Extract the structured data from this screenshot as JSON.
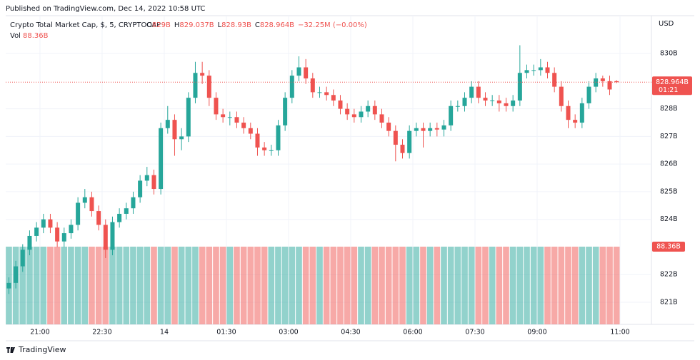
{
  "header": "Published on TradingView.com, Dec 14, 2022 10:58 UTC",
  "footer": "TradingView",
  "chart_data": {
    "type": "candlestick",
    "title": "Crypto Total Market Cap, $, 5, CRYPTOCAP",
    "ohlc_legend": [
      {
        "label": "O",
        "value": "829B"
      },
      {
        "label": "H",
        "value": "829.037B"
      },
      {
        "label": "L",
        "value": "828.93B"
      },
      {
        "label": "C",
        "value": "828.964B"
      }
    ],
    "change": "−32.25M (−0.00%)",
    "volume_legend": {
      "label": "Vol",
      "value": "88.36B"
    },
    "currency": "USD",
    "price_label": "828.964B",
    "countdown": "01:21",
    "up_color": "#26a69a",
    "down_color": "#ef5350",
    "grid": true,
    "xlim": [
      -49.6,
      885.5
    ],
    "xticks": [
      {
        "value": 0,
        "label": "21:00"
      },
      {
        "value": 90,
        "label": "22:30"
      },
      {
        "value": 180,
        "label": "14"
      },
      {
        "value": 270,
        "label": "01:30"
      },
      {
        "value": 360,
        "label": "03:00"
      },
      {
        "value": 450,
        "label": "04:30"
      },
      {
        "value": 540,
        "label": "06:00"
      },
      {
        "value": 630,
        "label": "07:30"
      },
      {
        "value": 720,
        "label": "09:00"
      },
      {
        "value": 840,
        "label": "11:00"
      }
    ],
    "ylim": [
      820.2,
      831.37
    ],
    "yticks": [
      {
        "value": 821,
        "label": "821B"
      },
      {
        "value": 822,
        "label": "822B"
      },
      {
        "value": 824,
        "label": "824B"
      },
      {
        "value": 825,
        "label": "825B"
      },
      {
        "value": 826,
        "label": "826B"
      },
      {
        "value": 827,
        "label": "827B"
      },
      {
        "value": 828,
        "label": "828B"
      },
      {
        "value": 830,
        "label": "830B"
      }
    ],
    "vol_ylim": [
      0,
      88.36
    ],
    "x": [
      -45,
      -35,
      -25,
      -15,
      -5,
      5,
      15,
      25,
      35,
      45,
      55,
      65,
      75,
      85,
      95,
      105,
      115,
      125,
      135,
      145,
      155,
      165,
      175,
      185,
      195,
      205,
      215,
      225,
      235,
      245,
      255,
      265,
      275,
      285,
      295,
      305,
      315,
      325,
      335,
      345,
      355,
      365,
      375,
      385,
      395,
      405,
      415,
      425,
      435,
      445,
      455,
      465,
      475,
      485,
      495,
      505,
      515,
      525,
      535,
      545,
      555,
      565,
      575,
      585,
      595,
      605,
      615,
      625,
      635,
      645,
      655,
      665,
      675,
      685,
      695,
      705,
      715,
      725,
      735,
      745,
      755,
      765,
      775,
      785,
      795,
      805,
      815,
      825,
      835
    ],
    "open": [
      821.5,
      821.7,
      822.3,
      822.9,
      823.4,
      823.7,
      824.0,
      823.7,
      823.2,
      823.5,
      823.8,
      824.6,
      824.8,
      824.3,
      823.8,
      822.9,
      823.9,
      824.2,
      824.4,
      824.8,
      825.4,
      825.6,
      825.1,
      827.3,
      827.6,
      826.9,
      827.0,
      828.4,
      829.3,
      829.2,
      828.4,
      827.8,
      827.7,
      827.7,
      827.5,
      827.3,
      827.1,
      826.6,
      826.5,
      826.5,
      827.4,
      828.4,
      829.2,
      829.5,
      829.1,
      828.6,
      828.6,
      828.5,
      828.3,
      828.0,
      827.8,
      827.7,
      827.9,
      828.1,
      827.8,
      827.5,
      827.2,
      826.7,
      826.4,
      827.2,
      827.3,
      827.2,
      827.3,
      827.25,
      827.4,
      828.1,
      828.1,
      828.4,
      828.8,
      828.4,
      828.3,
      828.3,
      828.2,
      828.1,
      828.3,
      829.3,
      829.4,
      829.4,
      829.5,
      829.3,
      828.8,
      828.1,
      827.6,
      827.5,
      828.2,
      828.8,
      829.1,
      829.0,
      829
    ],
    "high": [
      821.9,
      822.5,
      823.1,
      823.6,
      823.9,
      824.2,
      824.2,
      823.9,
      823.7,
      824.0,
      824.8,
      825.1,
      825.0,
      824.5,
      824.0,
      824.1,
      824.4,
      824.6,
      825.0,
      825.6,
      825.9,
      825.8,
      827.5,
      828.1,
      827.8,
      827.3,
      828.6,
      829.7,
      829.7,
      829.4,
      828.6,
      828.0,
      827.9,
      827.9,
      827.7,
      827.5,
      827.3,
      826.8,
      826.7,
      827.6,
      828.6,
      829.4,
      829.9,
      829.8,
      829.3,
      828.8,
      828.8,
      828.7,
      828.5,
      828.2,
      828.0,
      828.1,
      828.3,
      828.3,
      828.0,
      827.7,
      827.4,
      826.9,
      827.4,
      827.5,
      827.5,
      827.5,
      827.5,
      827.6,
      828.3,
      828.3,
      828.6,
      829.0,
      829.0,
      828.6,
      828.5,
      828.5,
      828.4,
      828.5,
      830.3,
      829.6,
      829.6,
      829.8,
      829.7,
      829.5,
      829.0,
      828.3,
      827.8,
      828.4,
      829.0,
      829.3,
      829.2,
      829.2,
      829.037
    ],
    "low": [
      821.3,
      821.5,
      822.1,
      822.7,
      823.2,
      823.5,
      823.5,
      823.0,
      823.0,
      823.3,
      823.6,
      824.4,
      824.1,
      823.6,
      822.6,
      822.7,
      823.7,
      824.0,
      824.2,
      824.6,
      825.2,
      824.9,
      824.9,
      827.1,
      826.3,
      826.5,
      826.8,
      828.2,
      828.9,
      828.1,
      827.6,
      827.5,
      827.4,
      827.3,
      827.1,
      826.9,
      826.3,
      826.3,
      826.3,
      826.3,
      827.2,
      828.2,
      829.0,
      828.9,
      828.4,
      828.4,
      828.3,
      828.1,
      827.8,
      827.6,
      827.5,
      827.5,
      827.7,
      827.6,
      827.3,
      827.0,
      826.1,
      826.2,
      826.2,
      827.0,
      826.6,
      827.0,
      827.0,
      827.0,
      827.2,
      827.9,
      827.9,
      828.2,
      828.2,
      828.1,
      828.1,
      827.9,
      827.9,
      827.9,
      828.1,
      829.1,
      829.2,
      829.2,
      829.1,
      828.6,
      827.9,
      827.3,
      827.3,
      827.3,
      828.0,
      828.6,
      828.8,
      828.5,
      828.93
    ],
    "close": [
      821.7,
      822.3,
      822.9,
      823.4,
      823.7,
      824.0,
      823.7,
      823.2,
      823.5,
      823.8,
      824.6,
      824.8,
      824.3,
      823.8,
      822.9,
      823.9,
      824.2,
      824.4,
      824.8,
      825.4,
      825.6,
      825.1,
      827.3,
      827.6,
      826.9,
      827.0,
      828.4,
      829.3,
      829.2,
      828.4,
      827.8,
      827.7,
      827.7,
      827.5,
      827.3,
      827.1,
      826.6,
      826.5,
      826.5,
      827.4,
      828.4,
      829.2,
      829.5,
      829.1,
      828.6,
      828.6,
      828.5,
      828.3,
      828.0,
      827.8,
      827.7,
      827.9,
      828.1,
      827.8,
      827.5,
      827.2,
      826.7,
      826.4,
      827.2,
      827.3,
      827.2,
      827.3,
      827.25,
      827.4,
      828.1,
      828.1,
      828.4,
      828.8,
      828.4,
      828.3,
      828.3,
      828.2,
      828.1,
      828.3,
      829.3,
      829.4,
      829.4,
      829.5,
      829.3,
      828.8,
      828.1,
      827.6,
      827.5,
      828.2,
      828.8,
      829.1,
      829.0,
      828.7,
      828.964
    ],
    "volume": [
      88.36,
      88.36,
      88.36,
      88.36,
      88.36,
      88.36,
      88.36,
      88.36,
      88.36,
      88.36,
      88.36,
      88.36,
      88.36,
      88.36,
      88.36,
      88.36,
      88.36,
      88.36,
      88.36,
      88.36,
      88.36,
      88.36,
      88.36,
      88.36,
      88.36,
      88.36,
      88.36,
      88.36,
      88.36,
      88.36,
      88.36,
      88.36,
      88.36,
      88.36,
      88.36,
      88.36,
      88.36,
      88.36,
      88.36,
      88.36,
      88.36,
      88.36,
      88.36,
      88.36,
      88.36,
      88.36,
      88.36,
      88.36,
      88.36,
      88.36,
      88.36,
      88.36,
      88.36,
      88.36,
      88.36,
      88.36,
      88.36,
      88.36,
      88.36,
      88.36,
      88.36,
      88.36,
      88.36,
      88.36,
      88.36,
      88.36,
      88.36,
      88.36,
      88.36,
      88.36,
      88.36,
      88.36,
      88.36,
      88.36,
      88.36,
      88.36,
      88.36,
      88.36,
      88.36,
      88.36,
      88.36,
      88.36,
      88.36,
      88.36,
      88.36,
      88.36,
      88.36,
      88.36,
      88.36
    ]
  }
}
